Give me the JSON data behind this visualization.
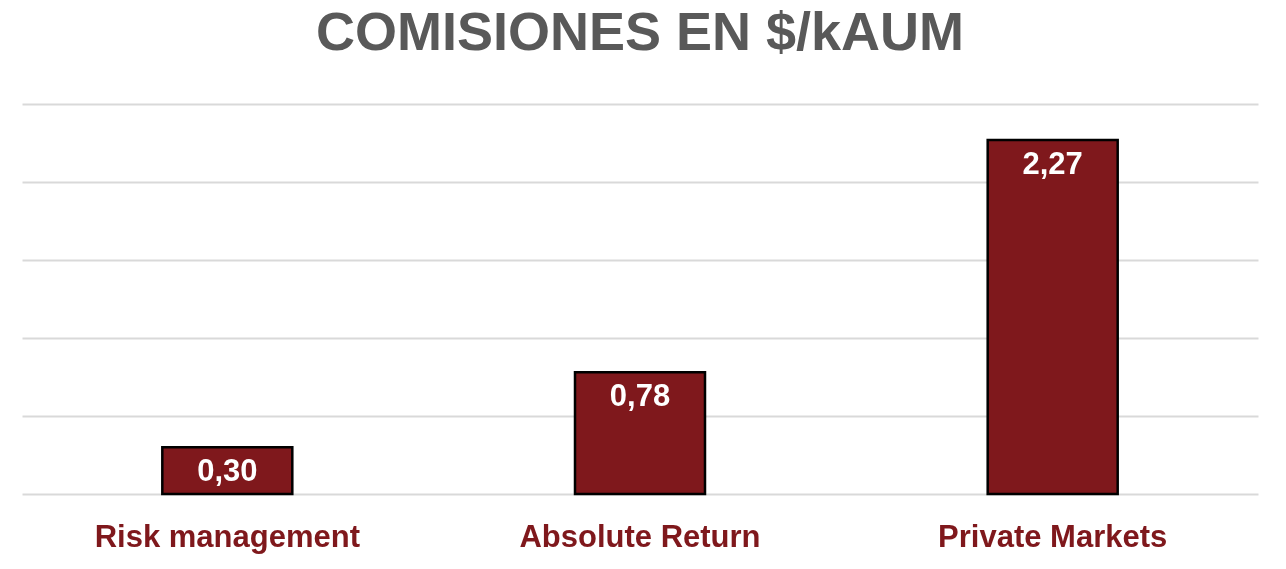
{
  "chart_data": {
    "type": "bar",
    "title": "COMISIONES EN $/kAUM",
    "categories": [
      "Risk management",
      "Absolute Return",
      "Private Markets"
    ],
    "values": [
      0.3,
      0.78,
      2.27
    ],
    "value_labels": [
      "0,30",
      "0,78",
      "2,27"
    ],
    "color": "#7f181c",
    "ylim": [
      0,
      2.5
    ],
    "yticks": [
      {
        "value": 0,
        "label": null
      },
      {
        "value": 0.5,
        "label": null
      },
      {
        "value": 1,
        "label": null
      },
      {
        "value": 1.5,
        "label": null
      },
      {
        "value": 2,
        "label": null
      },
      {
        "value": 2.5,
        "label": null
      }
    ],
    "grid": "y"
  }
}
